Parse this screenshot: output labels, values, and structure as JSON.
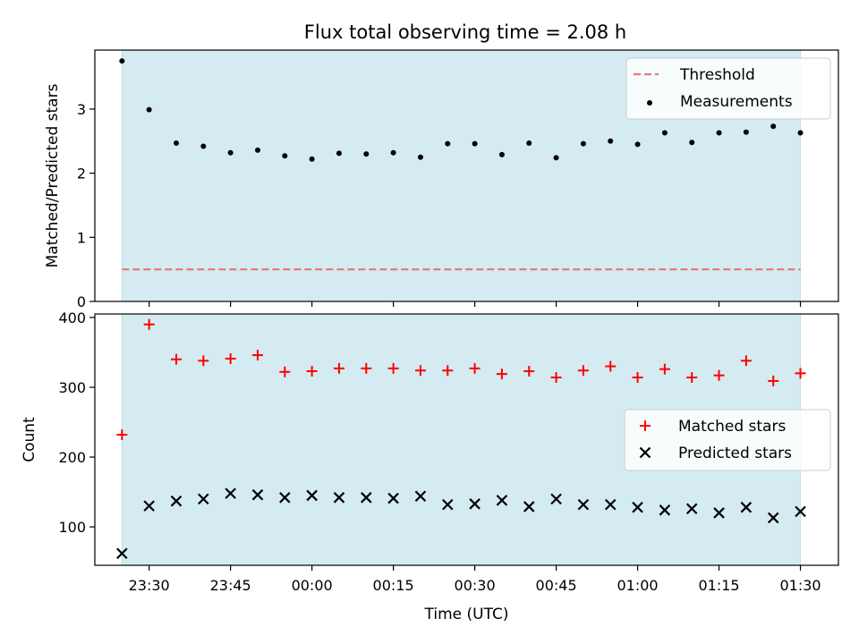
{
  "chart_data": [
    {
      "type": "scatter",
      "title": "Flux total observing time = 2.08 h",
      "xlabel": "",
      "ylabel": "Matched/Predicted stars",
      "xlim": [
        "23:20",
        "01:37"
      ],
      "ylim": [
        0,
        3.92
      ],
      "yticks": [
        0,
        1,
        2,
        3
      ],
      "shaded_span": [
        "23:25",
        "01:30"
      ],
      "legend_position": "top-right",
      "series": [
        {
          "name": "Threshold",
          "style": "dashed-line",
          "color": "#e87a7a",
          "x": [
            "23:25",
            "01:30"
          ],
          "values": [
            0.5,
            0.5
          ]
        },
        {
          "name": "Measurements",
          "style": "dot",
          "color": "#000000",
          "x": [
            "23:25",
            "23:30",
            "23:35",
            "23:40",
            "23:45",
            "23:50",
            "23:55",
            "00:00",
            "00:05",
            "00:10",
            "00:15",
            "00:20",
            "00:25",
            "00:30",
            "00:35",
            "00:40",
            "00:45",
            "00:50",
            "00:55",
            "01:00",
            "01:05",
            "01:10",
            "01:15",
            "01:20",
            "01:25",
            "01:30"
          ],
          "values": [
            3.75,
            2.99,
            2.47,
            2.42,
            2.32,
            2.36,
            2.27,
            2.22,
            2.31,
            2.3,
            2.32,
            2.25,
            2.46,
            2.46,
            2.29,
            2.47,
            2.24,
            2.46,
            2.5,
            2.45,
            2.63,
            2.48,
            2.63,
            2.64,
            2.73,
            2.63
          ]
        }
      ]
    },
    {
      "type": "scatter",
      "title": "",
      "xlabel": "Time (UTC)",
      "ylabel": "Count",
      "xlim": [
        "23:20",
        "01:37"
      ],
      "ylim": [
        45,
        405
      ],
      "yticks": [
        100,
        200,
        300,
        400
      ],
      "xtick_labels": [
        "23:30",
        "23:45",
        "00:00",
        "00:15",
        "00:30",
        "00:45",
        "01:00",
        "01:15",
        "01:30"
      ],
      "shaded_span": [
        "23:25",
        "01:30"
      ],
      "legend_position": "center-right",
      "series": [
        {
          "name": "Matched stars",
          "style": "plus",
          "color": "#ff0000",
          "x": [
            "23:25",
            "23:30",
            "23:35",
            "23:40",
            "23:45",
            "23:50",
            "23:55",
            "00:00",
            "00:05",
            "00:10",
            "00:15",
            "00:20",
            "00:25",
            "00:30",
            "00:35",
            "00:40",
            "00:45",
            "00:50",
            "00:55",
            "01:00",
            "01:05",
            "01:10",
            "01:15",
            "01:20",
            "01:25",
            "01:30"
          ],
          "values": [
            232,
            390,
            340,
            338,
            341,
            346,
            322,
            323,
            327,
            327,
            327,
            324,
            324,
            327,
            319,
            323,
            314,
            324,
            330,
            314,
            326,
            314,
            317,
            338,
            309,
            320
          ]
        },
        {
          "name": "Predicted stars",
          "style": "x",
          "color": "#000000",
          "x": [
            "23:25",
            "23:30",
            "23:35",
            "23:40",
            "23:45",
            "23:50",
            "23:55",
            "00:00",
            "00:05",
            "00:10",
            "00:15",
            "00:20",
            "00:25",
            "00:30",
            "00:35",
            "00:40",
            "00:45",
            "00:50",
            "00:55",
            "01:00",
            "01:05",
            "01:10",
            "01:15",
            "01:20",
            "01:25",
            "01:30"
          ],
          "values": [
            62,
            130,
            137,
            140,
            148,
            146,
            142,
            145,
            142,
            142,
            141,
            144,
            132,
            133,
            138,
            129,
            140,
            132,
            132,
            128,
            124,
            126,
            120,
            128,
            113,
            122
          ]
        }
      ]
    }
  ],
  "colors": {
    "shade": "#d4ebf1",
    "shade_edge": "#bcdfe8"
  }
}
